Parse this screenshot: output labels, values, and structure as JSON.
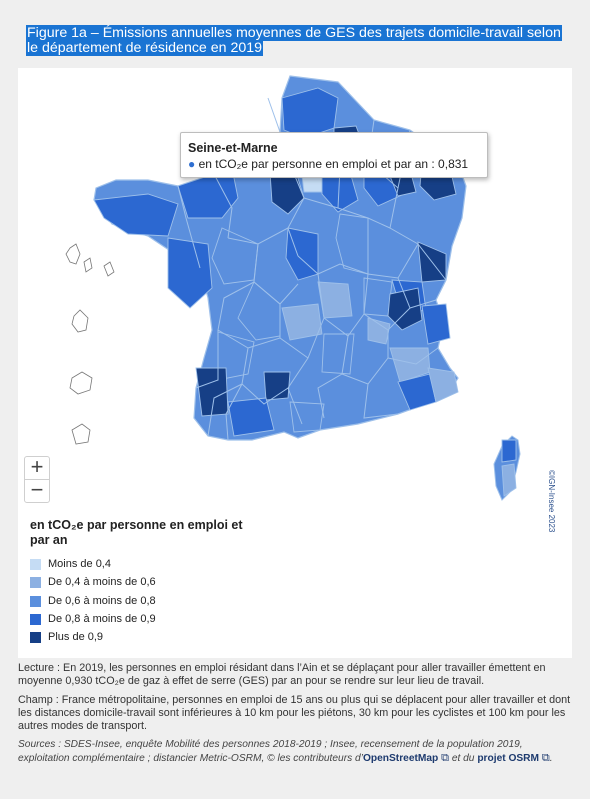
{
  "title": "Figure 1a – Émissions annuelles moyennes de GES des trajets domicile-travail selon le département de résidence en 2019",
  "map": {
    "zoom_in_label": "+",
    "zoom_out_label": "−",
    "credit": "©IGN-Insee 2023",
    "colors": {
      "c1": "#c5dcf4",
      "c2": "#8cb0e2",
      "c3": "#5b8fdd",
      "c4": "#2c68d1",
      "c5": "#163f86",
      "border": "#9ec0ea",
      "islands": "#777777"
    }
  },
  "tooltip": {
    "title": "Seine-et-Marne",
    "bullet": "●",
    "text": "en tCO₂e par personne en emploi et par an : 0,831"
  },
  "legend": {
    "title": "en tCO₂e par personne en emploi et par an",
    "items": [
      {
        "label": "Moins de 0,4",
        "color": "#c5dcf4"
      },
      {
        "label": "De 0,4 à moins de 0,6",
        "color": "#8cb0e2"
      },
      {
        "label": "De 0,6 à moins de 0,8",
        "color": "#5b8fdd"
      },
      {
        "label": "De 0,8 à moins de 0,9",
        "color": "#2c68d1"
      },
      {
        "label": "Plus de 0,9",
        "color": "#163f86"
      }
    ]
  },
  "notes": {
    "lecture": "Lecture : En 2019, les personnes en emploi résidant dans l’Ain et se déplaçant pour aller travailler émettent en moyenne 0,930 tCO₂e de gaz à effet de serre (GES) par an pour se rendre sur leur lieu de travail.",
    "champ": "Champ : France métropolitaine, personnes en emploi de 15 ans ou plus qui se déplacent pour aller travailler et dont les distances domicile-travail sont inférieures à 10 km pour les piétons, 30 km pour les cyclistes et 100 km pour les autres modes de transport.",
    "sources": "Sources : SDES-Insee, enquête Mobilité des personnes 2018-2019 ; Insee, recensement de la population 2019, exploitation complémentaire ; distancier Metric-OSRM, © les contributeurs d’",
    "osm_label": "OpenStreetMap",
    "mid": "et du",
    "osrm_label": "projet OSRM",
    "ext_icon": "⧉",
    "end": "."
  }
}
